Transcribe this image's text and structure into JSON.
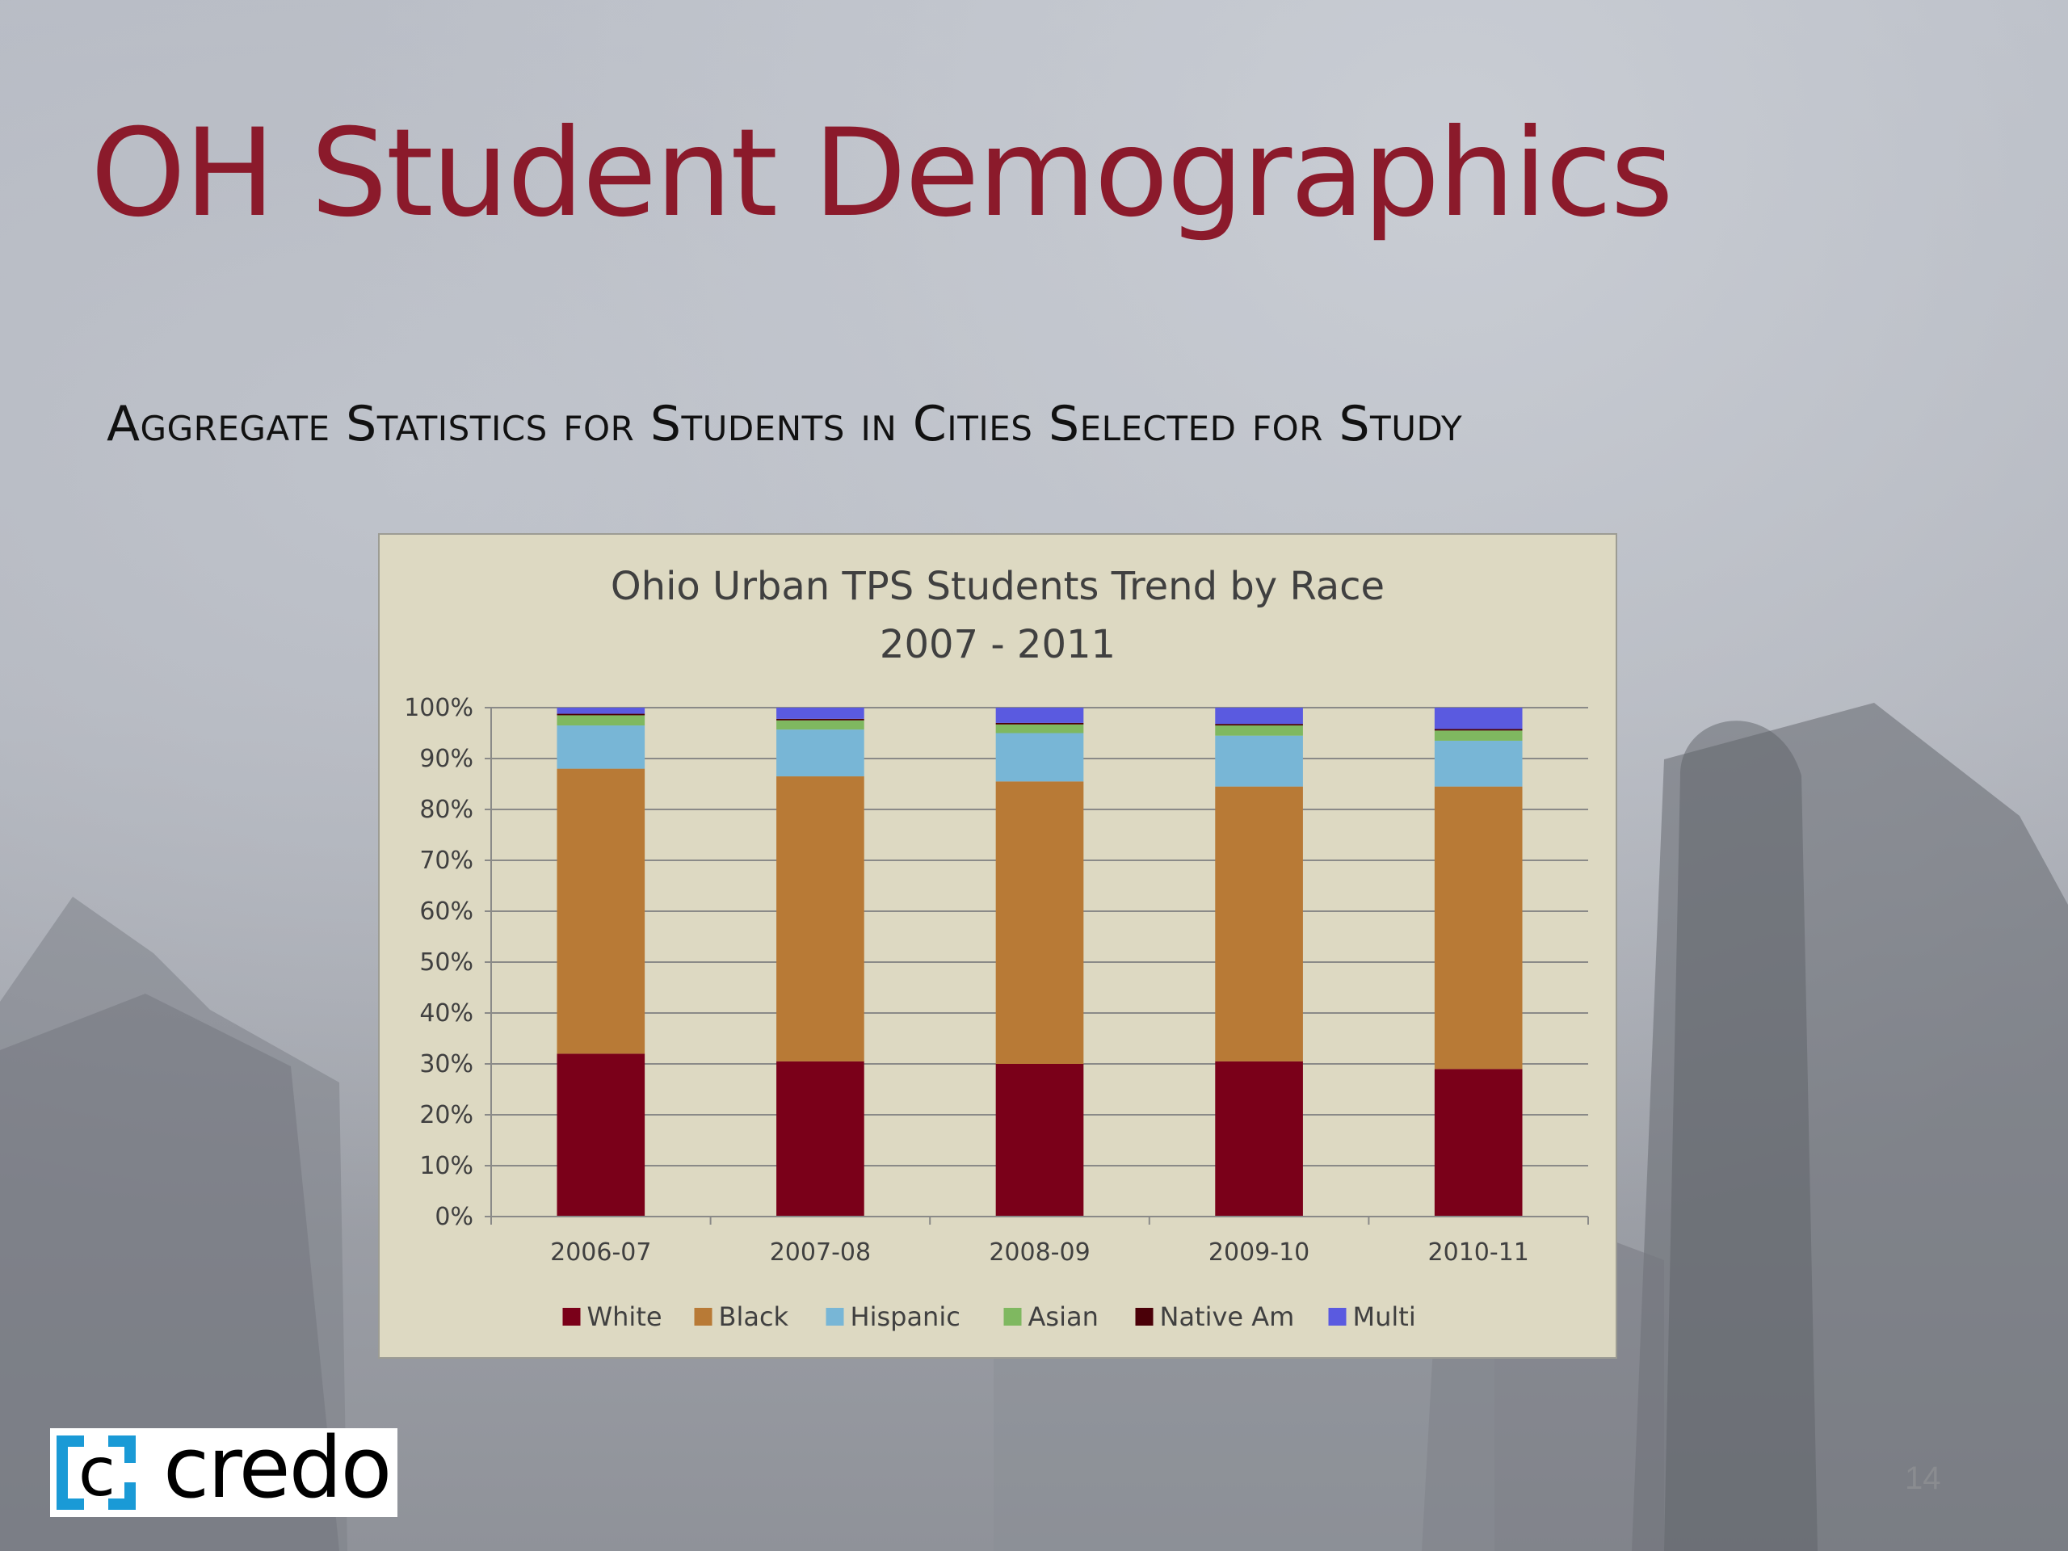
{
  "slide": {
    "title": "OH Student Demographics",
    "subtitle": "Aggregate Statistics for Students in Cities Selected for Study",
    "page_number": "14",
    "logo_text": "credo"
  },
  "colors": {
    "title": "#8b1a2b",
    "chart_background": "#ddd9c2",
    "logo_accent": "#1a9ad6"
  },
  "chart_data": {
    "type": "bar",
    "stacked": true,
    "title_lines": [
      "Ohio Urban TPS Students Trend by Race",
      "2007 - 2011"
    ],
    "categories": [
      "2006-07",
      "2007-08",
      "2008-09",
      "2009-10",
      "2010-11"
    ],
    "y_ticks": [
      "0%",
      "10%",
      "20%",
      "30%",
      "40%",
      "50%",
      "60%",
      "70%",
      "80%",
      "90%",
      "100%"
    ],
    "ylim": [
      0,
      100
    ],
    "grid": true,
    "legend_position": "bottom",
    "series": [
      {
        "name": "White",
        "color": "#7a0019",
        "values": [
          32,
          30.5,
          30,
          30.5,
          29
        ]
      },
      {
        "name": "Black",
        "color": "#b87a36",
        "values": [
          56,
          56,
          55.5,
          54,
          55.5
        ]
      },
      {
        "name": "Hispanic",
        "color": "#78b6d6",
        "values": [
          8.5,
          9.2,
          9.5,
          10,
          9
        ]
      },
      {
        "name": "Asian",
        "color": "#7fb860",
        "values": [
          2,
          1.8,
          1.7,
          2,
          2
        ]
      },
      {
        "name": "Native Am",
        "color": "#4a0008",
        "values": [
          0.3,
          0.3,
          0.3,
          0.3,
          0.3
        ]
      },
      {
        "name": "Multi",
        "color": "#5a5ae0",
        "values": [
          1.2,
          2.2,
          3,
          3.2,
          4.2
        ]
      }
    ]
  }
}
